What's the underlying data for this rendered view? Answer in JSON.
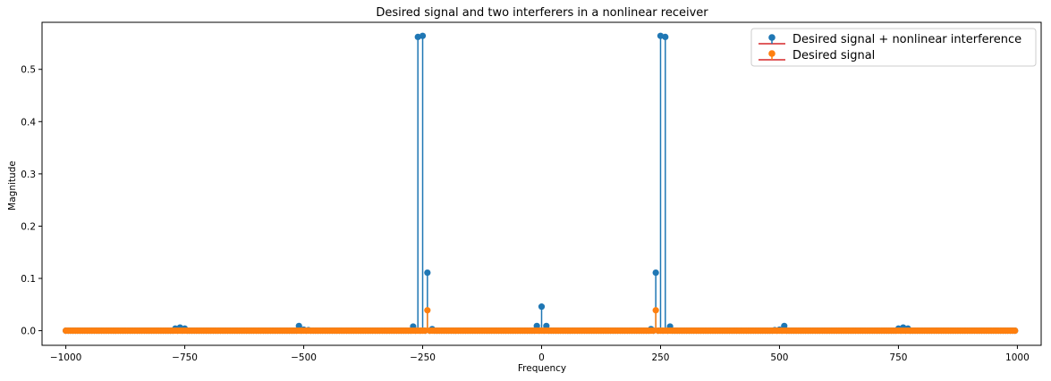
{
  "chart_data": {
    "type": "stem",
    "title": "Desired signal and two interferers in a nonlinear receiver",
    "xlabel": "Frequency",
    "ylabel": "Magnitude",
    "xlim": [
      -1050,
      1050
    ],
    "ylim": [
      -0.028,
      0.59
    ],
    "x_ticks": [
      -1000,
      -750,
      -500,
      -250,
      0,
      250,
      500,
      750,
      1000
    ],
    "x_tick_labels": [
      "−1000",
      "−750",
      "−500",
      "−250",
      "0",
      "250",
      "500",
      "750",
      "1000"
    ],
    "y_ticks": [
      0.0,
      0.1,
      0.2,
      0.3,
      0.4,
      0.5
    ],
    "y_tick_labels": [
      "0.0",
      "0.1",
      "0.2",
      "0.3",
      "0.4",
      "0.5"
    ],
    "grid": false,
    "legend_position": "top-right",
    "baseline": 0,
    "frequency_range": [
      -1000,
      995
    ],
    "frequency_step": 5,
    "series": [
      {
        "name": "Desired signal + nonlinear interference",
        "color": "#1f77b4",
        "baseline_color": "#d62728",
        "points": [
          {
            "x": -770,
            "y": 0.004
          },
          {
            "x": -760,
            "y": 0.006
          },
          {
            "x": -750,
            "y": 0.004
          },
          {
            "x": -510,
            "y": 0.009
          },
          {
            "x": -500,
            "y": 0.002
          },
          {
            "x": -490,
            "y": 0.001
          },
          {
            "x": -270,
            "y": 0.008
          },
          {
            "x": -260,
            "y": 0.562
          },
          {
            "x": -250,
            "y": 0.564
          },
          {
            "x": -240,
            "y": 0.111
          },
          {
            "x": -230,
            "y": 0.003
          },
          {
            "x": -10,
            "y": 0.009
          },
          {
            "x": 0,
            "y": 0.046
          },
          {
            "x": 10,
            "y": 0.009
          },
          {
            "x": 230,
            "y": 0.003
          },
          {
            "x": 240,
            "y": 0.111
          },
          {
            "x": 250,
            "y": 0.564
          },
          {
            "x": 260,
            "y": 0.562
          },
          {
            "x": 270,
            "y": 0.008
          },
          {
            "x": 490,
            "y": 0.001
          },
          {
            "x": 500,
            "y": 0.002
          },
          {
            "x": 510,
            "y": 0.009
          },
          {
            "x": 750,
            "y": 0.004
          },
          {
            "x": 760,
            "y": 0.006
          },
          {
            "x": 770,
            "y": 0.004
          }
        ]
      },
      {
        "name": "Desired signal",
        "color": "#ff7f0e",
        "baseline_color": "#d62728",
        "points": [
          {
            "x": -240,
            "y": 0.039
          },
          {
            "x": 240,
            "y": 0.039
          }
        ]
      }
    ]
  }
}
